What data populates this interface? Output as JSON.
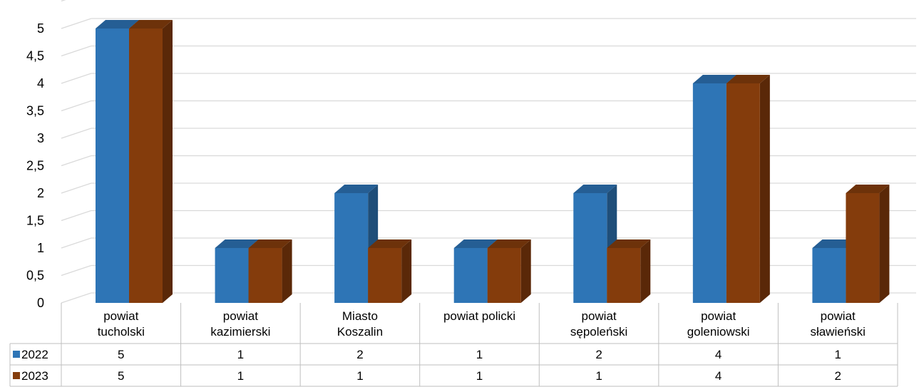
{
  "chart_data": {
    "type": "bar",
    "title": "",
    "xlabel": "",
    "ylabel": "",
    "ylim": [
      0,
      5
    ],
    "ytick_step": 0.5,
    "ytick_labels": [
      "0",
      "0,5",
      "1",
      "1,5",
      "2",
      "2,5",
      "3",
      "3,5",
      "4",
      "4,5",
      "5"
    ],
    "categories": [
      [
        "powiat",
        "tucholski"
      ],
      [
        "powiat",
        "kazimierski"
      ],
      [
        "Miasto",
        "Koszalin"
      ],
      [
        "powiat policki"
      ],
      [
        "powiat",
        "sępoleński"
      ],
      [
        "powiat",
        "goleniowski"
      ],
      [
        "powiat",
        "sławieński"
      ]
    ],
    "series": [
      {
        "name": "2022",
        "values": [
          5,
          1,
          2,
          1,
          2,
          4,
          1
        ],
        "color": "#2E75B6",
        "top": "#255E94",
        "side": "#1F4E79"
      },
      {
        "name": "2023",
        "values": [
          5,
          1,
          1,
          1,
          1,
          4,
          2
        ],
        "color": "#843C0C",
        "top": "#6D320A",
        "side": "#5A2808"
      }
    ],
    "grid": true,
    "style": "3d-clustered-column",
    "data_table": true,
    "legend": "data-table"
  }
}
